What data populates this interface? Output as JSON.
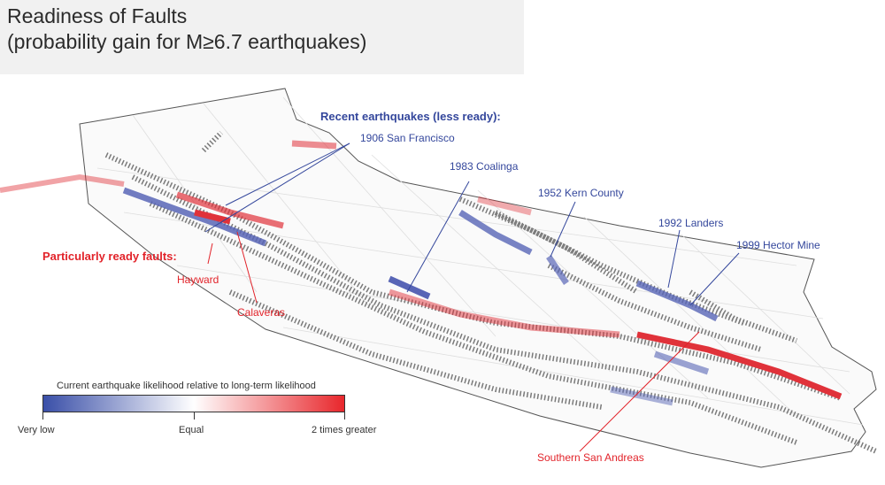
{
  "title": "Readiness of Faults",
  "subtitle": "(probability gain for M≥6.7 earthquakes)",
  "recent": {
    "heading": "Recent earthquakes (less ready):",
    "events": [
      "1906 San Francisco",
      "1983 Coalinga",
      "1952 Kern County",
      "1992 Landers",
      "1999 Hector Mine"
    ]
  },
  "ready": {
    "heading": "Particularly ready faults:",
    "faults": [
      "Hayward",
      "Calaveras",
      "Southern San Andreas"
    ]
  },
  "legend": {
    "title": "Current earthquake likelihood relative to long-term likelihood",
    "labels": [
      "Very low",
      "Equal",
      "2 times greater"
    ],
    "colors": [
      "#3a4fa8",
      "#ffffff",
      "#e8272c"
    ]
  }
}
